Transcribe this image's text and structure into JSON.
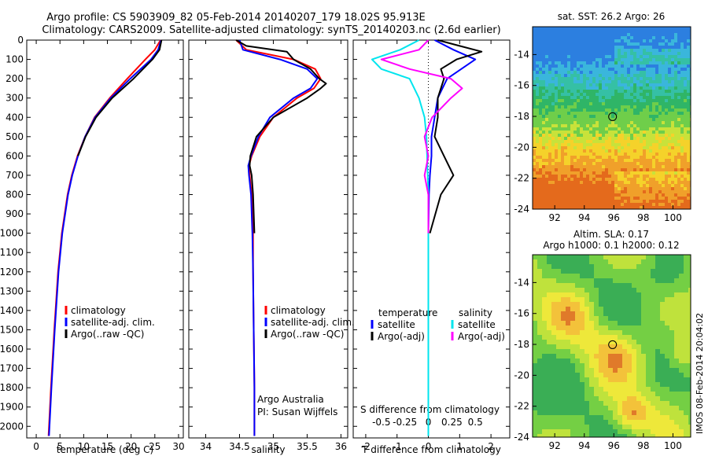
{
  "title_line1": "Argo profile: CS 5903909_82 05-Feb-2014 20140207_179 18.02S 95.913E",
  "title_line2": "Climatology: CARS2009. Satellite-adjusted climatology: synTS_20140203.nc (2.6d earlier)",
  "timestamp": "IMOS 08-Feb-2014 20:04:02",
  "colors": {
    "red": "#ff0000",
    "blue": "#0000ff",
    "black": "#000000",
    "cyan": "#00e5ee",
    "magenta": "#ff00ff"
  },
  "chart_data": [
    {
      "type": "line",
      "xlabel": "temperature (deg C)",
      "ylabel": "",
      "xlim": [
        -2,
        31
      ],
      "ylim": [
        2060,
        0
      ],
      "xticks": [
        0,
        5,
        10,
        15,
        20,
        25,
        30
      ],
      "yticks": [
        0,
        100,
        200,
        300,
        400,
        500,
        600,
        700,
        800,
        900,
        1000,
        1100,
        1200,
        1300,
        1400,
        1500,
        1600,
        1700,
        1800,
        1900,
        2000
      ],
      "legend": {
        "position": "lower-middle",
        "entries": [
          "climatology",
          "satellite-adj. clim.",
          "Argo(..raw -QC)"
        ]
      },
      "series": [
        {
          "name": "climatology",
          "color": "red",
          "depth": [
            0,
            50,
            100,
            200,
            300,
            400,
            500,
            600,
            700,
            800,
            1000,
            1200,
            1500,
            1800,
            2050
          ],
          "values": [
            26.2,
            25.0,
            23.0,
            19.2,
            15.5,
            12.3,
            10.3,
            8.7,
            7.5,
            6.6,
            5.4,
            4.6,
            3.8,
            3.1,
            2.6
          ]
        },
        {
          "name": "satellite-adj. clim.",
          "color": "blue",
          "depth": [
            0,
            50,
            100,
            200,
            300,
            400,
            500,
            600,
            700,
            800,
            1000,
            1200,
            1500,
            1800,
            2050
          ],
          "values": [
            26.3,
            25.7,
            24.2,
            19.8,
            15.7,
            12.4,
            10.3,
            8.8,
            7.6,
            6.7,
            5.5,
            4.7,
            3.9,
            3.2,
            2.7
          ]
        },
        {
          "name": "Argo(..raw -QC)",
          "color": "black",
          "depth": [
            0,
            50,
            100,
            200,
            300,
            400,
            500,
            600
          ],
          "values": [
            26.4,
            26.0,
            24.5,
            20.5,
            16.0,
            12.6,
            10.4,
            8.8
          ]
        }
      ]
    },
    {
      "type": "line",
      "xlabel": "salinity",
      "xlim": [
        33.75,
        36.1
      ],
      "ylim": [
        2060,
        0
      ],
      "xticks": [
        34,
        34.5,
        35,
        35.5,
        36
      ],
      "legend": {
        "position": "lower-middle",
        "entries": [
          "climatology",
          "satellite-adj. clim.",
          "Argo(..raw -QC)"
        ]
      },
      "annotation": [
        "Argo Australia",
        "PI: Susan Wijffels"
      ],
      "series": [
        {
          "name": "climatology",
          "color": "red",
          "depth": [
            0,
            50,
            100,
            150,
            200,
            250,
            300,
            400,
            500,
            600,
            650,
            700,
            800,
            1000,
            1200,
            1500,
            1800,
            2050
          ],
          "values": [
            34.45,
            34.6,
            35.3,
            35.62,
            35.7,
            35.6,
            35.35,
            35.0,
            34.8,
            34.68,
            34.64,
            34.65,
            34.68,
            34.7,
            34.7,
            34.71,
            34.72,
            34.72
          ]
        },
        {
          "name": "satellite-adj. clim.",
          "color": "blue",
          "depth": [
            0,
            50,
            100,
            150,
            200,
            250,
            300,
            400,
            500,
            600,
            650,
            700,
            800,
            1000,
            1200,
            1500,
            1800,
            2050
          ],
          "values": [
            34.5,
            34.55,
            35.1,
            35.5,
            35.65,
            35.55,
            35.3,
            34.95,
            34.78,
            34.67,
            34.63,
            34.64,
            34.67,
            34.69,
            34.7,
            34.71,
            34.72,
            34.72
          ]
        },
        {
          "name": "Argo(..raw -QC)",
          "color": "black",
          "depth": [
            0,
            30,
            60,
            100,
            150,
            200,
            225,
            250,
            300,
            400,
            500,
            600,
            650,
            700,
            800,
            1000
          ],
          "values": [
            34.45,
            34.6,
            35.2,
            35.3,
            35.55,
            35.68,
            35.78,
            35.7,
            35.5,
            35.0,
            34.75,
            34.66,
            34.65,
            34.68,
            34.7,
            34.72
          ]
        }
      ]
    },
    {
      "type": "line",
      "xlabel": "T difference from climatology",
      "top_axis_label": "S difference from climatology",
      "xlim": [
        -2.4,
        2.6
      ],
      "ylim": [
        2060,
        0
      ],
      "xticks": [
        -2,
        -1,
        0,
        1,
        2
      ],
      "top_ticks": [
        -0.5,
        -0.25,
        0,
        0.25,
        0.5
      ],
      "legend": {
        "position": "lower",
        "temperature_title": "temperature",
        "salinity_title": "salinity",
        "entries": [
          "satellite",
          "Argo(-adj)",
          "satellite",
          "Argo(-adj)"
        ]
      },
      "series": [
        {
          "name": "temperature satellite",
          "color": "blue",
          "depth": [
            0,
            50,
            100,
            200,
            300,
            400,
            500,
            600,
            700,
            800,
            1000,
            1500,
            2050
          ],
          "values": [
            0.2,
            0.8,
            1.5,
            0.6,
            0.3,
            0.2,
            0.1,
            0.1,
            0.05,
            0.02,
            0.0,
            0.0,
            0.0
          ]
        },
        {
          "name": "temperature Argo(-adj)",
          "color": "black",
          "depth": [
            0,
            30,
            60,
            100,
            150,
            200,
            300,
            400,
            500,
            600,
            700,
            800,
            1000
          ],
          "values": [
            0.3,
            1.0,
            1.7,
            0.9,
            0.4,
            0.5,
            0.3,
            0.3,
            0.2,
            0.5,
            0.8,
            0.4,
            0.05
          ]
        },
        {
          "name": "salinity satellite",
          "color": "cyan",
          "depth": [
            0,
            50,
            100,
            150,
            200,
            300,
            400,
            500,
            800,
            1000,
            1500,
            2050
          ],
          "values": [
            -0.05,
            -0.15,
            -0.3,
            -0.25,
            -0.1,
            -0.05,
            -0.02,
            -0.01,
            0.0,
            0.0,
            0.0,
            0.0
          ]
        },
        {
          "name": "salinity Argo(-adj)",
          "color": "magenta",
          "depth": [
            0,
            50,
            100,
            150,
            200,
            250,
            300,
            400,
            500,
            600,
            700,
            800,
            1000
          ],
          "values": [
            0.0,
            -0.05,
            -0.25,
            -0.1,
            0.12,
            0.18,
            0.12,
            0.02,
            -0.02,
            0.0,
            -0.02,
            0.0,
            0.0
          ]
        }
      ]
    },
    {
      "type": "heatmap",
      "title": "sat. SST: 26.2 Argo: 26",
      "xlim": [
        90.5,
        101.2
      ],
      "ylim": [
        -24,
        -12.2
      ],
      "xticks": [
        92,
        94,
        96,
        98,
        100
      ],
      "yticks": [
        -14,
        -16,
        -18,
        -20,
        -22,
        -24
      ],
      "marker": {
        "lon": 95.913,
        "lat": -18.02
      }
    },
    {
      "type": "heatmap",
      "title": [
        "Altim. SLA: 0.17",
        "Argo h1000: 0.1 h2000: 0.12"
      ],
      "xlim": [
        90.5,
        101.2
      ],
      "ylim": [
        -24,
        -12.2
      ],
      "xticks": [
        92,
        94,
        96,
        98,
        100
      ],
      "yticks": [
        -14,
        -16,
        -18,
        -20,
        -22,
        -24
      ],
      "marker": {
        "lon": 95.913,
        "lat": -18.02
      }
    }
  ]
}
